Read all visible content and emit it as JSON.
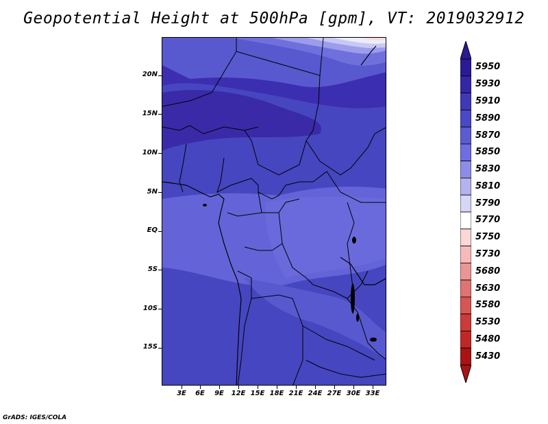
{
  "title": "Geopotential Height at 500hPa [gpm], VT: 2019032912",
  "credit": "GrADS: IGES/COLA",
  "lat_labels": [
    "20N",
    "15N",
    "10N",
    "5N",
    "EQ",
    "5S",
    "10S",
    "15S"
  ],
  "lon_labels": [
    "3E",
    "6E",
    "9E",
    "12E",
    "15E",
    "18E",
    "21E",
    "24E",
    "27E",
    "30E",
    "33E"
  ],
  "colorbar": {
    "levels": [
      "5950",
      "5930",
      "5910",
      "5890",
      "5870",
      "5850",
      "5830",
      "5810",
      "5790",
      "5770",
      "5750",
      "5730",
      "5680",
      "5630",
      "5580",
      "5530",
      "5480",
      "5430"
    ],
    "colors": [
      "#2a1a95",
      "#3526a6",
      "#3e3ab6",
      "#4a49c5",
      "#5c5cd2",
      "#6e6ee0",
      "#8d8de9",
      "#b3b3f0",
      "#d6d6f7",
      "#ffffff",
      "#fbd7d7",
      "#f7baba",
      "#eb9696",
      "#e07373",
      "#d65555",
      "#cc3a3a",
      "#c02828",
      "#a81414"
    ]
  }
}
